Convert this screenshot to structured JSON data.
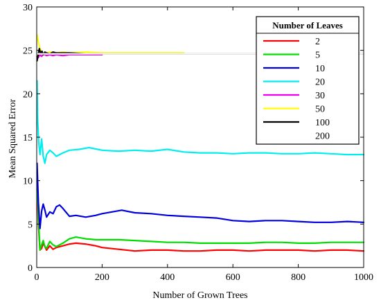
{
  "chart_data": {
    "type": "line",
    "title": "",
    "xlabel": "Number of Grown Trees",
    "ylabel": "Mean Squared Error",
    "xlim": [
      0,
      1000
    ],
    "ylim": [
      0,
      30
    ],
    "xticks": [
      0,
      200,
      400,
      600,
      800,
      1000
    ],
    "yticks": [
      0,
      5,
      10,
      15,
      20,
      25,
      30
    ],
    "grid": false,
    "legend": {
      "title": "Number of Leaves",
      "placement": "top-right"
    },
    "series": [
      {
        "name": "2",
        "color": "#ff0000",
        "x": [
          1,
          5,
          10,
          15,
          20,
          25,
          30,
          40,
          50,
          60,
          80,
          100,
          120,
          150,
          180,
          200,
          250,
          300,
          350,
          400,
          450,
          500,
          550,
          600,
          650,
          700,
          750,
          800,
          850,
          900,
          950,
          1000
        ],
        "y": [
          9.0,
          5.0,
          2.0,
          2.2,
          2.8,
          2.4,
          2.0,
          2.5,
          2.1,
          2.3,
          2.5,
          2.7,
          2.8,
          2.7,
          2.5,
          2.3,
          2.1,
          1.9,
          2.0,
          2.0,
          1.9,
          1.9,
          2.0,
          2.0,
          1.9,
          2.0,
          2.0,
          2.0,
          1.9,
          2.0,
          2.0,
          1.9
        ]
      },
      {
        "name": "5",
        "color": "#00dd00",
        "x": [
          1,
          5,
          10,
          15,
          20,
          25,
          30,
          40,
          50,
          60,
          80,
          100,
          120,
          150,
          180,
          200,
          250,
          300,
          350,
          400,
          450,
          500,
          550,
          600,
          650,
          700,
          750,
          800,
          850,
          900,
          950,
          1000
        ],
        "y": [
          11.0,
          6.0,
          2.0,
          2.6,
          3.1,
          2.4,
          2.2,
          3.0,
          2.6,
          2.4,
          2.8,
          3.3,
          3.5,
          3.3,
          3.2,
          3.2,
          3.2,
          3.1,
          3.0,
          2.9,
          2.9,
          2.8,
          2.8,
          2.8,
          2.8,
          2.9,
          2.9,
          2.8,
          2.8,
          2.9,
          2.9,
          2.9
        ]
      },
      {
        "name": "10",
        "color": "#0000dd",
        "x": [
          1,
          5,
          10,
          15,
          20,
          25,
          30,
          40,
          50,
          60,
          70,
          80,
          100,
          120,
          150,
          180,
          200,
          230,
          260,
          300,
          350,
          400,
          450,
          500,
          550,
          600,
          650,
          700,
          750,
          800,
          850,
          900,
          950,
          1000
        ],
        "y": [
          12.0,
          7.5,
          4.5,
          6.5,
          7.3,
          6.6,
          5.8,
          6.4,
          6.2,
          7.0,
          7.2,
          6.8,
          5.9,
          6.0,
          5.8,
          6.0,
          6.2,
          6.4,
          6.6,
          6.3,
          6.2,
          6.0,
          5.9,
          5.8,
          5.7,
          5.4,
          5.3,
          5.4,
          5.4,
          5.3,
          5.2,
          5.2,
          5.3,
          5.2
        ]
      },
      {
        "name": "20",
        "color": "#00eeee",
        "x": [
          1,
          3,
          6,
          10,
          15,
          20,
          25,
          30,
          40,
          50,
          60,
          80,
          100,
          130,
          160,
          200,
          250,
          300,
          350,
          400,
          450,
          500,
          550,
          600,
          650,
          700,
          750,
          800,
          850,
          900,
          950,
          1000
        ],
        "y": [
          21.5,
          17.0,
          14.5,
          13.0,
          14.8,
          12.8,
          12.0,
          13.0,
          13.5,
          13.2,
          12.8,
          13.2,
          13.5,
          13.6,
          13.8,
          13.5,
          13.4,
          13.5,
          13.4,
          13.6,
          13.3,
          13.2,
          13.2,
          13.1,
          13.2,
          13.2,
          13.1,
          13.1,
          13.2,
          13.1,
          13.0,
          13.0
        ]
      },
      {
        "name": "30",
        "color": "#ee00ee",
        "x": [
          1,
          5,
          10,
          15,
          20,
          30,
          40,
          50,
          60,
          80,
          100,
          150,
          200
        ],
        "y": [
          24.0,
          24.2,
          24.5,
          24.3,
          24.6,
          24.4,
          24.5,
          24.4,
          24.5,
          24.4,
          24.5,
          24.5,
          24.5
        ]
      },
      {
        "name": "50",
        "color": "#ffff00",
        "x": [
          1,
          3,
          6,
          10,
          15,
          20,
          30,
          40,
          50,
          60,
          80,
          100,
          150,
          200,
          250,
          300,
          350,
          400,
          450
        ],
        "y": [
          26.8,
          26.3,
          25.8,
          25.2,
          24.8,
          24.6,
          24.7,
          24.8,
          24.8,
          24.7,
          24.8,
          24.7,
          24.8,
          24.7,
          24.7,
          24.7,
          24.7,
          24.7,
          24.7
        ]
      },
      {
        "name": "100",
        "color": "#000000",
        "x": [
          1,
          4,
          8,
          12,
          16,
          20,
          25,
          30,
          40,
          50,
          60,
          80,
          100,
          150,
          200,
          300,
          400,
          500,
          600,
          700,
          800,
          900,
          1000
        ],
        "y": [
          23.8,
          24.4,
          25.2,
          24.6,
          24.9,
          24.5,
          24.8,
          24.7,
          24.6,
          24.8,
          24.7,
          24.7,
          24.7,
          24.6,
          24.6,
          24.6,
          24.6,
          24.6,
          24.6,
          24.6,
          24.6,
          24.6,
          24.6
        ]
      },
      {
        "name": "200",
        "color": "#ffffff",
        "x": [
          1,
          1000
        ],
        "y": [
          24.6,
          24.6
        ]
      }
    ]
  }
}
